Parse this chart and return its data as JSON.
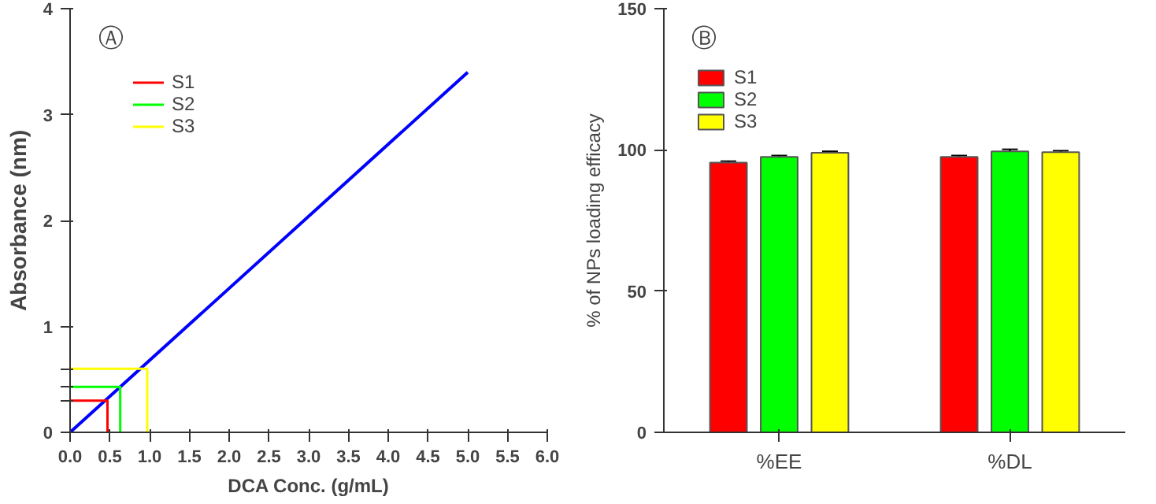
{
  "chart_data": [
    {
      "type": "line",
      "xlabel": "DCA Conc. (g/mL)",
      "ylabel": "Absorbance (nm)",
      "annotations": [
        "Ⓐ"
      ],
      "xlim": [
        0,
        6
      ],
      "ylim": [
        0,
        4
      ],
      "xticks": [
        {
          "value": 0,
          "label": "0.0"
        },
        {
          "value": 0.5,
          "label": "0.5"
        },
        {
          "value": 1,
          "label": "1.0"
        },
        {
          "value": 1.5,
          "label": "1.5"
        },
        {
          "value": 2,
          "label": "2.0"
        },
        {
          "value": 2.5,
          "label": "2.5"
        },
        {
          "value": 3,
          "label": "3.0"
        },
        {
          "value": 3.5,
          "label": "3.5"
        },
        {
          "value": 4,
          "label": "4.0"
        },
        {
          "value": 4.5,
          "label": "4.5"
        },
        {
          "value": 5,
          "label": "5.0"
        },
        {
          "value": 5.5,
          "label": "5.5"
        },
        {
          "value": 6,
          "label": "6.0"
        }
      ],
      "yticks": [
        0,
        {
          "value": 0.3,
          "label": null
        },
        {
          "value": 0.43,
          "label": null
        },
        {
          "value": 0.6,
          "label": null
        },
        1,
        2,
        3,
        4
      ],
      "grid": false,
      "legend": "top left",
      "marker": "none",
      "line_style": "solid",
      "series": [
        {
          "color": "#0000ff",
          "x": [
            0,
            5
          ],
          "values": [
            0,
            3.4
          ]
        },
        {
          "name": "S1",
          "color": "#ff0000",
          "x": [
            0,
            0.47,
            0.47
          ],
          "values": [
            0.3,
            0.3,
            0
          ]
        },
        {
          "name": "S2",
          "color": "#00ff00",
          "x": [
            0,
            0.63,
            0.63
          ],
          "values": [
            0.43,
            0.43,
            0
          ]
        },
        {
          "name": "S3",
          "color": "#ffff00",
          "x": [
            0,
            0.97,
            0.97
          ],
          "values": [
            0.6,
            0.6,
            0
          ]
        }
      ]
    },
    {
      "type": "bar",
      "ylabel": "% of NPs loading efficacy",
      "annotations": [
        "Ⓑ"
      ],
      "categories": [
        "%EE",
        "%DL"
      ],
      "ylim": [
        0,
        150
      ],
      "yticks": [
        0,
        50,
        100,
        150
      ],
      "grid": false,
      "legend": "top left",
      "series": [
        {
          "name": "S1",
          "color": "#ff0000",
          "values": [
            95.5,
            97.5
          ],
          "errors": [
            0.5,
            0.5
          ]
        },
        {
          "name": "S2",
          "color": "#00ff00",
          "values": [
            97.5,
            99.5
          ],
          "errors": [
            0.5,
            0.7
          ]
        },
        {
          "name": "S3",
          "color": "#ffff00",
          "values": [
            99,
            99.2
          ],
          "errors": [
            0.5,
            0.5
          ]
        }
      ]
    }
  ]
}
